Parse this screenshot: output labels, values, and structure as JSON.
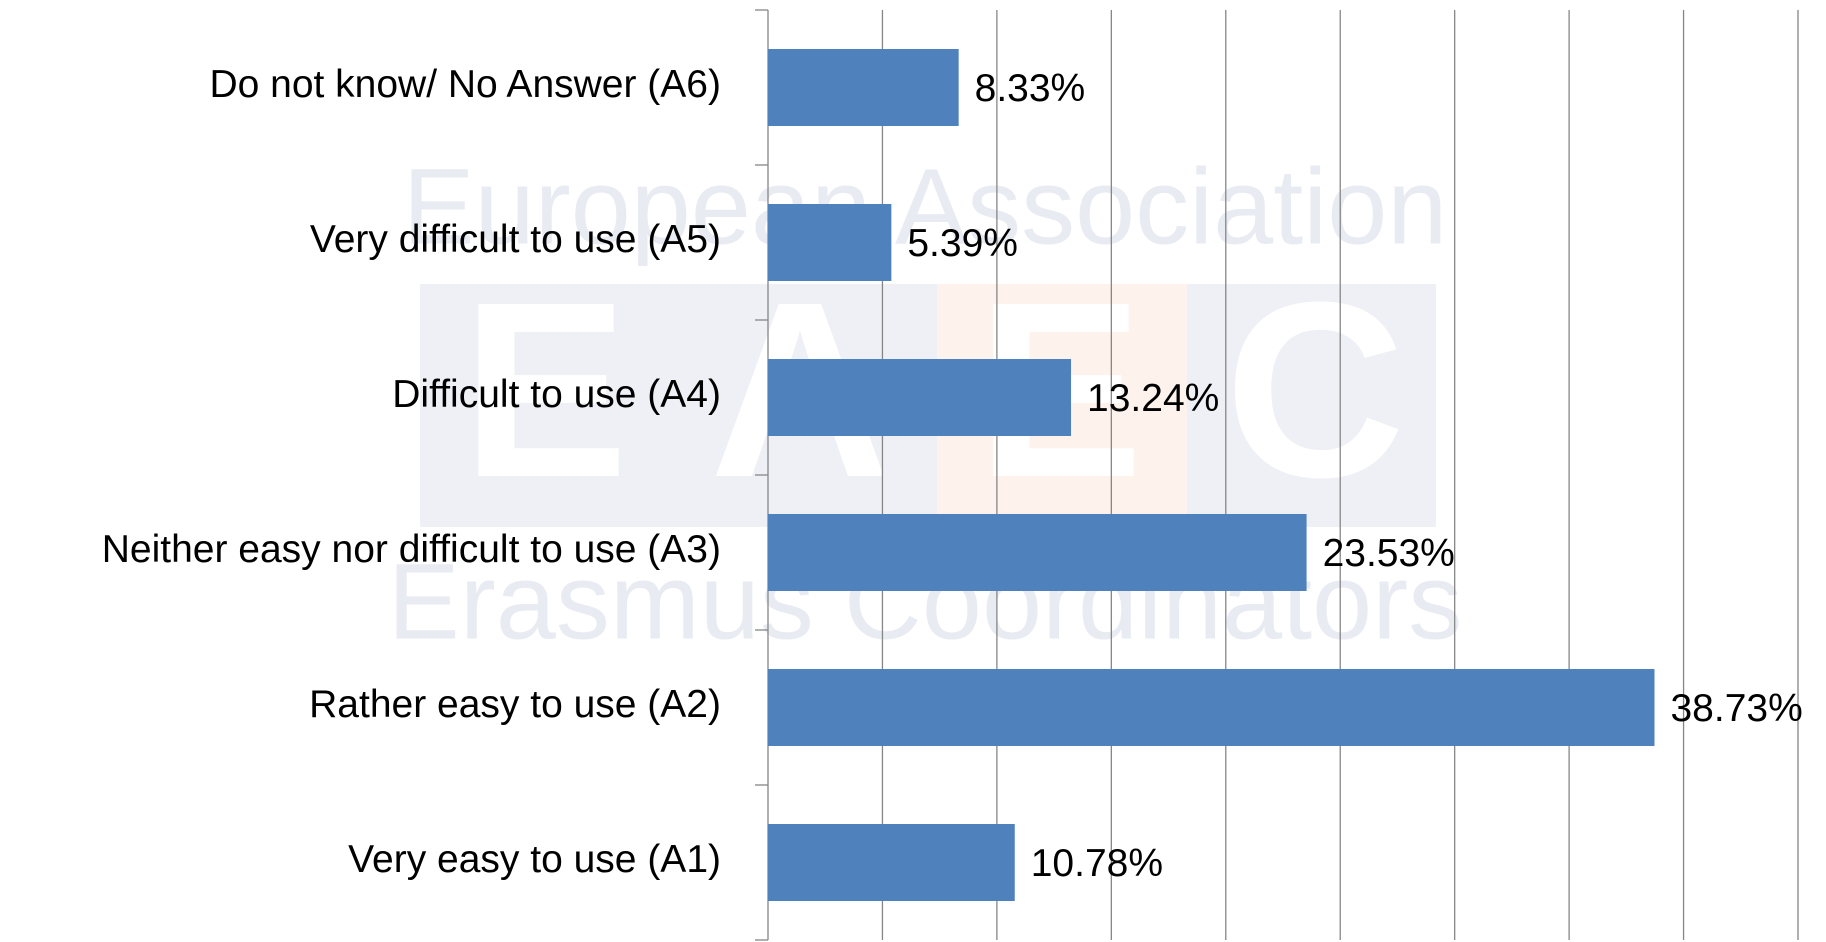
{
  "chart_data": {
    "type": "hbar",
    "categories": [
      "Do not know/ No Answer (A6)",
      "Very difficult to use (A5)",
      "Difficult to use (A4)",
      "Neither easy nor difficult to use (A3)",
      "Rather easy to use (A2)",
      "Very easy to use (A1)"
    ],
    "values": [
      8.33,
      5.39,
      13.24,
      23.53,
      38.73,
      10.78
    ],
    "value_labels": [
      "8.33%",
      "5.39%",
      "13.24%",
      "23.53%",
      "38.73%",
      "10.78%"
    ],
    "color": "#4f81bd",
    "xlim": [
      0,
      45
    ],
    "xticks": [
      0,
      5,
      10,
      15,
      20,
      25,
      30,
      35,
      40,
      45
    ],
    "grid": true,
    "watermark": {
      "top": "European Association",
      "letters": [
        "E",
        "A",
        "E",
        "C"
      ],
      "bottom": "Erasmus Coordinators"
    }
  }
}
